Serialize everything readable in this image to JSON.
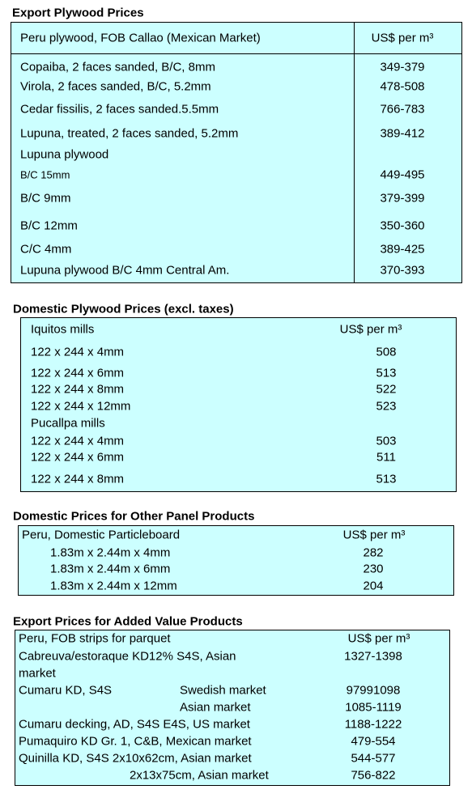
{
  "sections": [
    {
      "title": "Export Plywood Prices",
      "header": [
        "Peru plywood, FOB Callao (Mexican Market)",
        "US$ per m³"
      ],
      "rows": [
        [
          "Copaiba, 2 faces sanded, B/C, 8mm",
          "349-379"
        ],
        [
          "Virola, 2 faces sanded, B/C, 5.2mm",
          "478-508"
        ],
        [
          "Cedar fissilis, 2 faces sanded.5.5mm",
          "766-783"
        ],
        [
          "Lupuna, treated, 2 faces sanded, 5.2mm",
          "389-412"
        ],
        [
          "Lupuna plywood"
        ],
        [
          "B/C 15mm",
          "449-495"
        ],
        [
          "B/C 9mm",
          "379-399"
        ],
        [
          "B/C 12mm",
          "350-360"
        ],
        [
          "C/C 4mm",
          "389-425"
        ],
        [
          "Lupuna plywood B/C 4mm Central Am.",
          "370-393"
        ]
      ]
    },
    {
      "title": "Domestic Plywood Prices (excl. taxes)",
      "header": [
        "Iquitos mills",
        "US$ per m³"
      ],
      "rows": [
        [
          "122 x 244 x 4mm",
          "508"
        ],
        [
          "122 x 244 x 6mm",
          "513"
        ],
        [
          "122 x 244 x 8mm",
          "522"
        ],
        [
          "122 x 244 x 12mm",
          "523"
        ],
        [
          "Pucallpa mills"
        ],
        [
          "122 x 244 x 4mm",
          "503"
        ],
        [
          "122 x 244 x 6mm",
          "511"
        ],
        [
          "122 x 244 x 8mm",
          "513"
        ]
      ]
    },
    {
      "title": "Domestic Prices for Other Panel Products",
      "header": [
        "Peru, Domestic Particleboard",
        "US$ per m³"
      ],
      "rows": [
        [
          "1.83m x 2.44m x 4mm",
          "282"
        ],
        [
          "1.83m x 2.44m x 6mm",
          "230"
        ],
        [
          "1.83m x 2.44m x 12mm",
          "204"
        ]
      ]
    },
    {
      "title": "Export Prices for Added Value Products",
      "header": [
        "Peru, FOB strips for parquet",
        "US$ per m³"
      ],
      "rows": [
        [
          "Cabreuva/estoraque KD12% S4S, Asian",
          "1327-1398"
        ],
        [
          "market"
        ],
        [
          "Cumaru KD, S4S",
          "Swedish market",
          "97991098"
        ],
        [
          "Asian market",
          "1085-1119"
        ],
        [
          "Cumaru decking, AD, S4S E4S,  US market",
          "1188-1222"
        ],
        [
          "Pumaquiro KD Gr. 1, C&B,  Mexican market",
          "479-554"
        ],
        [
          "Quinilla KD, S4S 2x10x62cm,  Asian market",
          "544-577"
        ],
        [
          "2x13x75cm, Asian market",
          "756-822"
        ]
      ]
    }
  ]
}
